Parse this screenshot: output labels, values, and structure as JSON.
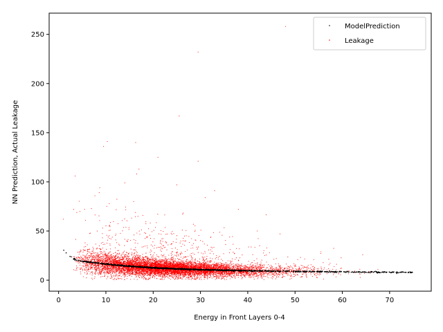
{
  "chart_data": {
    "type": "scatter",
    "xlabel": "Energy in Front Layers 0-4",
    "ylabel": "NN Prediction, Actual Leakage",
    "xlim": [
      -2.0,
      78.8
    ],
    "ylim": [
      -11.2,
      271.6
    ],
    "xticks": [
      0,
      10,
      20,
      30,
      40,
      50,
      60,
      70
    ],
    "yticks": [
      0,
      50,
      100,
      150,
      200,
      250
    ],
    "grid": false,
    "legend_position": "top-right",
    "series": [
      {
        "name": "ModelPrediction",
        "color": "#000000",
        "marker": "point",
        "curve_samples": {
          "x": [
            1,
            2,
            3,
            4,
            5,
            6,
            8,
            10,
            12,
            15,
            20,
            25,
            30,
            35,
            40,
            45,
            50,
            55,
            60,
            65,
            70,
            75
          ],
          "y": [
            31,
            26,
            22,
            20,
            19.3,
            18.7,
            17.5,
            16.4,
            15.4,
            14.2,
            12.6,
            11.5,
            10.7,
            10.1,
            9.6,
            9.2,
            8.9,
            8.6,
            8.4,
            8.2,
            8.1,
            8.0
          ]
        }
      },
      {
        "name": "Leakage",
        "color": "#ff0000",
        "marker": "point",
        "notable_points": [
          {
            "x": 48,
            "y": 258
          },
          {
            "x": 29.5,
            "y": 232
          },
          {
            "x": 25.5,
            "y": 167
          },
          {
            "x": 10.3,
            "y": 141
          },
          {
            "x": 16.3,
            "y": 140
          },
          {
            "x": 9.5,
            "y": 136
          },
          {
            "x": 21,
            "y": 125
          },
          {
            "x": 29.5,
            "y": 121
          },
          {
            "x": 17,
            "y": 113
          },
          {
            "x": 16.5,
            "y": 108
          },
          {
            "x": 3.5,
            "y": 106
          },
          {
            "x": 25,
            "y": 97
          },
          {
            "x": 8.7,
            "y": 94
          },
          {
            "x": 14,
            "y": 99
          },
          {
            "x": 33,
            "y": 91
          },
          {
            "x": 31,
            "y": 84
          },
          {
            "x": 38,
            "y": 72
          },
          {
            "x": 1,
            "y": 62
          },
          {
            "x": 3.2,
            "y": 72
          },
          {
            "x": 42,
            "y": 50
          }
        ]
      }
    ]
  }
}
